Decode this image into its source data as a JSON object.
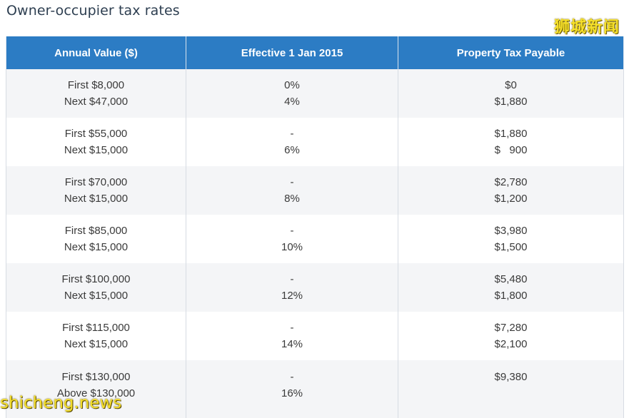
{
  "title": "Owner-occupier tax rates",
  "watermarks": {
    "top_right": "狮城新闻",
    "bottom_left": "shicheng.news"
  },
  "colors": {
    "header_bg": "#2c7cc4",
    "header_text": "#ffffff",
    "row_alt_bg": "#f4f5f7",
    "watermark": "#f6e02a"
  },
  "table": {
    "headers": [
      "Annual Value ($)",
      "Effective 1 Jan 2015",
      "Property Tax Payable"
    ],
    "rows": [
      {
        "annual_value": [
          "First $8,000",
          "Next $47,000"
        ],
        "rate": [
          "0%",
          "4%"
        ],
        "payable": [
          "$0",
          "$1,880"
        ]
      },
      {
        "annual_value": [
          "First $55,000",
          "Next $15,000"
        ],
        "rate": [
          "-",
          "6%"
        ],
        "payable": [
          "$1,880",
          "$   900"
        ]
      },
      {
        "annual_value": [
          "First $70,000",
          "Next $15,000"
        ],
        "rate": [
          "-",
          "8%"
        ],
        "payable": [
          "$2,780",
          "$1,200"
        ]
      },
      {
        "annual_value": [
          "First $85,000",
          "Next $15,000"
        ],
        "rate": [
          "-",
          "10%"
        ],
        "payable": [
          "$3,980",
          "$1,500"
        ]
      },
      {
        "annual_value": [
          "First $100,000",
          "Next $15,000"
        ],
        "rate": [
          "-",
          "12%"
        ],
        "payable": [
          "$5,480",
          "$1,800"
        ]
      },
      {
        "annual_value": [
          "First $115,000",
          "Next $15,000"
        ],
        "rate": [
          "-",
          "14%"
        ],
        "payable": [
          "$7,280",
          "$2,100"
        ]
      },
      {
        "annual_value": [
          "First $130,000",
          "Above $130,000"
        ],
        "rate": [
          "-",
          "16%"
        ],
        "payable": [
          "$9,380",
          ""
        ]
      }
    ]
  }
}
